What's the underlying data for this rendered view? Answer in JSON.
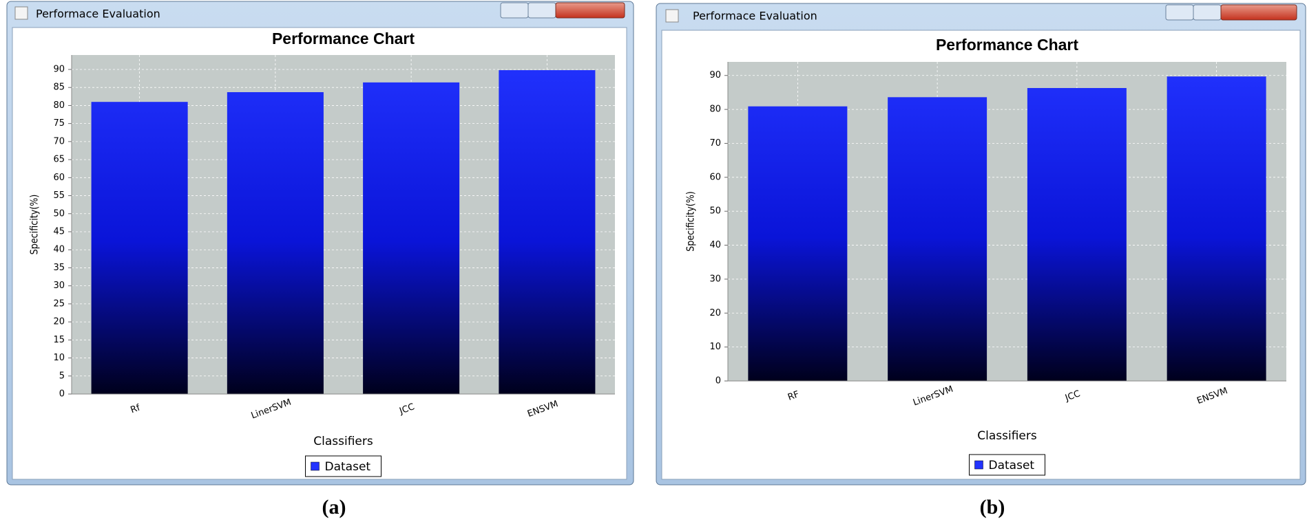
{
  "windows": [
    {
      "title": "Performace Evaluation",
      "caption": "(a)"
    },
    {
      "title": "Performace Evaluation",
      "caption": "(b)"
    }
  ],
  "chart_data": [
    {
      "type": "bar",
      "title": "Performance Chart",
      "x_label": "Classifiers",
      "y_label": "Specificity(%)",
      "categories": [
        "Rf",
        "LinerSVM",
        "JCC",
        "ENSVM"
      ],
      "series": [
        {
          "name": "Dataset",
          "color": "#2233ff",
          "values": [
            81,
            83.7,
            86.4,
            89.8
          ]
        }
      ],
      "ylim": [
        0,
        94
      ],
      "yticks": [
        0,
        5,
        10,
        15,
        20,
        25,
        30,
        35,
        40,
        45,
        50,
        55,
        60,
        65,
        70,
        75,
        80,
        85,
        90
      ],
      "grid": true,
      "legend": "bottom"
    },
    {
      "type": "bar",
      "title": "Performance Chart",
      "x_label": "Classifiers",
      "y_label": "Specificity(%)",
      "categories": [
        "RF",
        "LinerSVM",
        "JCC",
        "ENSVM"
      ],
      "series": [
        {
          "name": "Dataset",
          "color": "#2233ff",
          "values": [
            80.9,
            83.6,
            86.3,
            89.7
          ]
        }
      ],
      "ylim": [
        0,
        94
      ],
      "yticks": [
        0,
        10,
        20,
        30,
        40,
        50,
        60,
        70,
        80,
        90
      ],
      "grid": true,
      "legend": "bottom"
    }
  ]
}
